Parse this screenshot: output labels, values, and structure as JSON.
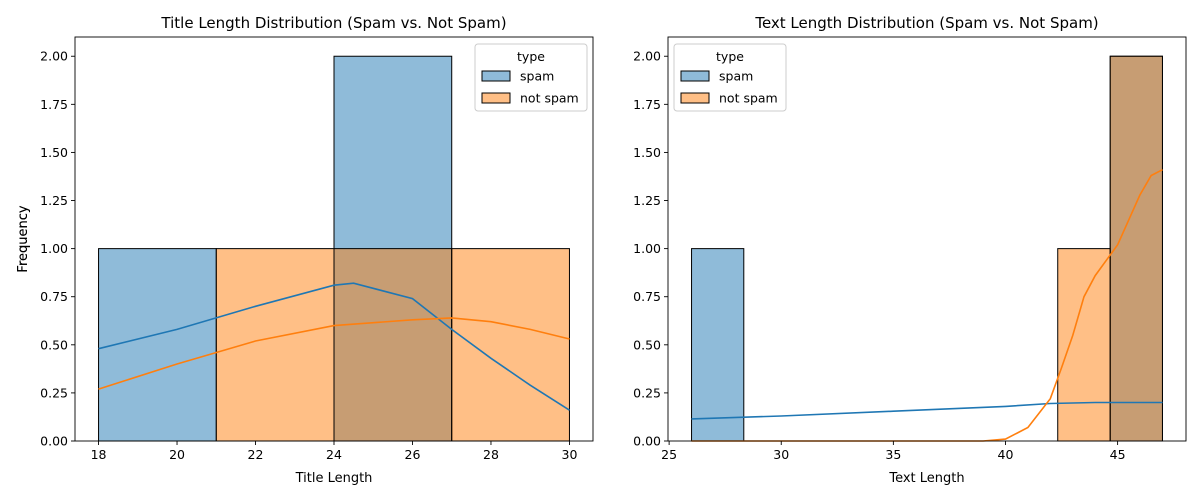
{
  "chart_data": [
    {
      "type": "histogram",
      "title": "Title Length Distribution (Spam vs. Not Spam)",
      "xlabel": "Title Length",
      "ylabel": "Frequency",
      "xlim": [
        17.4,
        30.6
      ],
      "ylim": [
        0,
        2.1
      ],
      "xticks": [
        18,
        20,
        22,
        24,
        26,
        28,
        30
      ],
      "xtick_labels": [
        "18",
        "20",
        "22",
        "24",
        "26",
        "28",
        "30"
      ],
      "yticks": [
        0,
        0.25,
        0.5,
        0.75,
        1,
        1.25,
        1.5,
        1.75,
        2
      ],
      "ytick_labels": [
        "0.00",
        "0.25",
        "0.50",
        "0.75",
        "1.00",
        "1.25",
        "1.50",
        "1.75",
        "2.00"
      ],
      "legend": {
        "title": "type",
        "position": "upper right",
        "entries": [
          "spam",
          "not spam"
        ]
      },
      "bins": [
        {
          "x0": 18,
          "x1": 21,
          "spam": 1,
          "not_spam": 0
        },
        {
          "x0": 21,
          "x1": 24,
          "spam": 0,
          "not_spam": 1
        },
        {
          "x0": 24,
          "x1": 27,
          "spam": 2,
          "not_spam": 1
        },
        {
          "x0": 27,
          "x1": 30,
          "spam": 0,
          "not_spam": 1
        }
      ],
      "series": [
        {
          "name": "spam",
          "color": "#1f77b4",
          "kde": [
            [
              18,
              0.48
            ],
            [
              20,
              0.58
            ],
            [
              22,
              0.7
            ],
            [
              24,
              0.81
            ],
            [
              24.5,
              0.82
            ],
            [
              26,
              0.74
            ],
            [
              27,
              0.58
            ],
            [
              28,
              0.43
            ],
            [
              29,
              0.29
            ],
            [
              30,
              0.16
            ]
          ]
        },
        {
          "name": "not spam",
          "color": "#ff7f0e",
          "kde": [
            [
              18,
              0.27
            ],
            [
              20,
              0.4
            ],
            [
              22,
              0.52
            ],
            [
              24,
              0.6
            ],
            [
              26,
              0.63
            ],
            [
              27,
              0.64
            ],
            [
              28,
              0.62
            ],
            [
              29,
              0.58
            ],
            [
              30,
              0.53
            ]
          ]
        }
      ]
    },
    {
      "type": "histogram",
      "title": "Text Length Distribution (Spam vs. Not Spam)",
      "xlabel": "Text Length",
      "ylabel": "Frequency",
      "xlim": [
        24.95,
        48.05
      ],
      "ylim": [
        0,
        2.1
      ],
      "xticks": [
        25,
        30,
        35,
        40,
        45
      ],
      "xtick_labels": [
        "25",
        "30",
        "35",
        "40",
        "45"
      ],
      "yticks": [
        0,
        0.25,
        0.5,
        0.75,
        1,
        1.25,
        1.5,
        1.75,
        2
      ],
      "ytick_labels": [
        "0.00",
        "0.25",
        "0.50",
        "0.75",
        "1.00",
        "1.25",
        "1.50",
        "1.75",
        "2.00"
      ],
      "legend": {
        "title": "type",
        "position": "upper left",
        "entries": [
          "spam",
          "not spam"
        ]
      },
      "bins": [
        {
          "x0": 26,
          "x1": 28.33,
          "spam": 1,
          "not_spam": 0
        },
        {
          "x0": 42.33,
          "x1": 44.67,
          "spam": 0,
          "not_spam": 1
        },
        {
          "x0": 44.67,
          "x1": 47,
          "spam": 2,
          "not_spam": 2
        }
      ],
      "series": [
        {
          "name": "spam",
          "color": "#1f77b4",
          "kde": [
            [
              26,
              0.115
            ],
            [
              30,
              0.13
            ],
            [
              35,
              0.155
            ],
            [
              40,
              0.18
            ],
            [
              42,
              0.195
            ],
            [
              44,
              0.2
            ],
            [
              45,
              0.2
            ],
            [
              47,
              0.2
            ]
          ]
        },
        {
          "name": "not spam",
          "color": "#ff7f0e",
          "kde": [
            [
              26,
              0
            ],
            [
              39,
              0.0
            ],
            [
              40,
              0.01
            ],
            [
              41,
              0.07
            ],
            [
              42,
              0.22
            ],
            [
              42.5,
              0.38
            ],
            [
              43,
              0.55
            ],
            [
              43.5,
              0.75
            ],
            [
              44,
              0.86
            ],
            [
              44.5,
              0.94
            ],
            [
              45,
              1.02
            ],
            [
              45.5,
              1.15
            ],
            [
              46,
              1.28
            ],
            [
              46.5,
              1.38
            ],
            [
              47,
              1.41
            ]
          ]
        }
      ]
    }
  ]
}
